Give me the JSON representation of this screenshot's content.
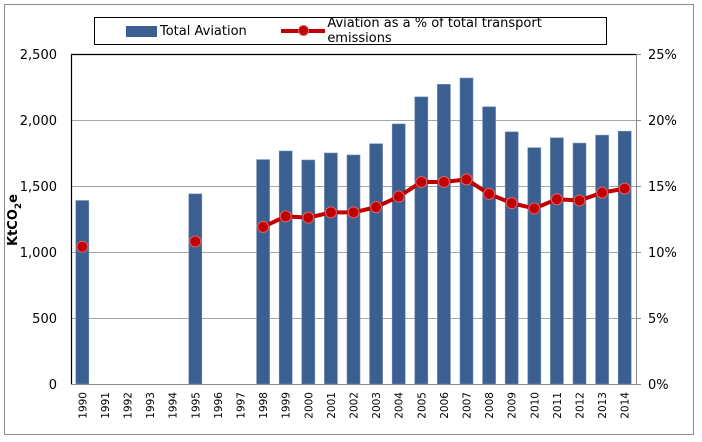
{
  "chart_data": {
    "type": "bar+line",
    "title": "",
    "categories": [
      "1990",
      "1991",
      "1992",
      "1993",
      "1994",
      "1995",
      "1996",
      "1997",
      "1998",
      "1999",
      "2000",
      "2001",
      "2002",
      "2003",
      "2004",
      "2005",
      "2006",
      "2007",
      "2008",
      "2009",
      "2010",
      "2011",
      "2012",
      "2013",
      "2014"
    ],
    "series": [
      {
        "name": "Total Aviation",
        "type": "bar",
        "axis": "left",
        "color": "#3B5F91",
        "values": [
          1390,
          null,
          null,
          null,
          null,
          1440,
          null,
          null,
          1700,
          1765,
          1697,
          1750,
          1735,
          1820,
          1970,
          2175,
          2270,
          2318,
          2100,
          1910,
          1790,
          1865,
          1825,
          1885,
          1915
        ]
      },
      {
        "name": "Aviation as a % of total transport emissions",
        "type": "line",
        "axis": "right",
        "color": "#C00000",
        "values": [
          10.4,
          null,
          null,
          null,
          null,
          10.8,
          null,
          null,
          11.9,
          12.7,
          12.6,
          13.0,
          13.0,
          13.4,
          14.2,
          15.3,
          15.3,
          15.5,
          14.4,
          13.7,
          13.3,
          14.0,
          13.9,
          14.5,
          14.8
        ]
      }
    ],
    "ylabel": "KtCO2e",
    "ylabel_main": "KtCO",
    "ylabel_sub": "2",
    "ylabel_tail": "e",
    "ylim": [
      0,
      2500
    ],
    "yticks": [
      0,
      500,
      1000,
      1500,
      2000,
      2500
    ],
    "ytick_labels": [
      "0",
      "500",
      "1,000",
      "1,500",
      "2,000",
      "2,500"
    ],
    "y2lim": [
      0,
      25
    ],
    "y2ticks": [
      0,
      5,
      10,
      15,
      20,
      25
    ],
    "y2tick_labels": [
      "0%",
      "5%",
      "10%",
      "15%",
      "20%",
      "25%"
    ],
    "xlabel": "",
    "grid": true,
    "legend_position": "top"
  },
  "legend": {
    "bar_label": "Total Aviation",
    "line_label": "Aviation as a % of total transport emissions"
  },
  "colors": {
    "bar": "#3B5F91",
    "line": "#C00000",
    "grid": "#A6A6A6"
  }
}
